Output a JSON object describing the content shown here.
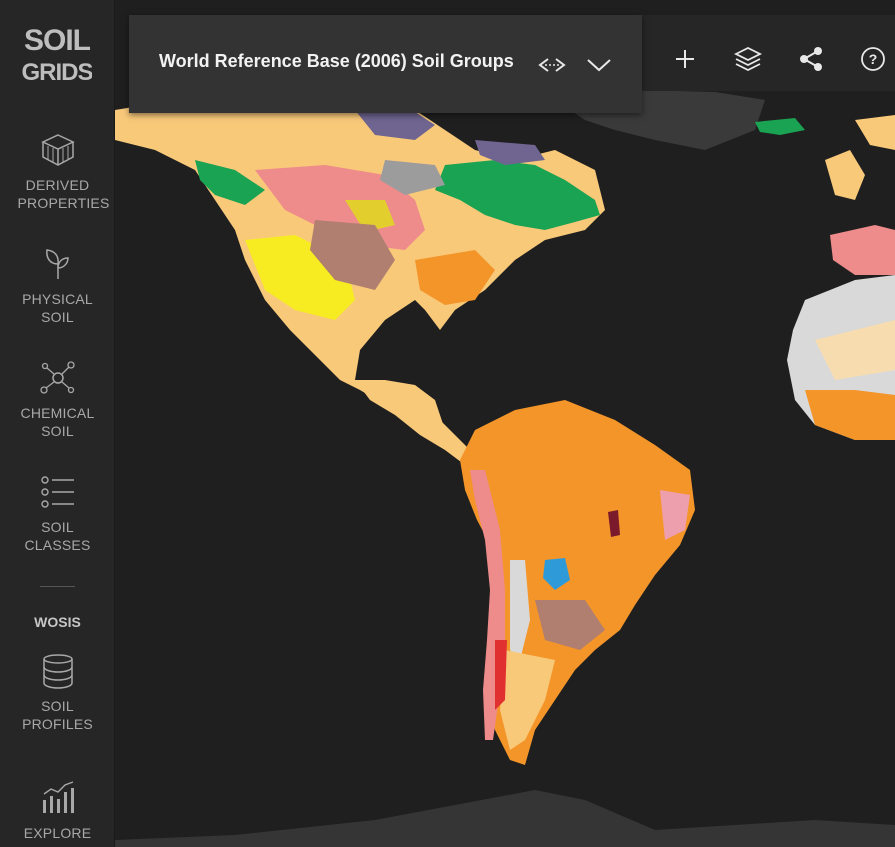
{
  "app": {
    "logo_text": "SOIL GRIDS"
  },
  "sidebar": {
    "items": [
      {
        "label": "DERIVED PROPERTIES",
        "icon": "layers-cube-icon"
      },
      {
        "label": "PHYSICAL SOIL",
        "icon": "leaf-sprout-icon"
      },
      {
        "label": "CHEMICAL SOIL",
        "icon": "molecule-icon"
      },
      {
        "label": "SOIL CLASSES",
        "icon": "list-icon"
      }
    ],
    "section_heading": "WOSIS",
    "section_items": [
      {
        "label": "SOIL PROFILES",
        "icon": "database-icon"
      },
      {
        "label": "EXPLORE",
        "icon": "chart-icon"
      }
    ]
  },
  "layer_panel": {
    "title": "World Reference Base (2006) Soil Groups",
    "compare_icon": "compare-arrows-icon",
    "expand_icon": "chevron-down-icon"
  },
  "toolbar": {
    "buttons": [
      {
        "icon": "plus-icon"
      },
      {
        "icon": "layers-icon"
      },
      {
        "icon": "share-icon"
      },
      {
        "icon": "help-icon"
      }
    ]
  },
  "colors": {
    "background": "#1f1f1f",
    "sidebar": "#262626",
    "panel": "#333333",
    "land_dark": "#3a3a3a",
    "orange": "#f4952a",
    "peach": "#f9c97a",
    "pink": "#ee8b8b",
    "green": "#1aa352",
    "yellow": "#f7ec22",
    "purple": "#6f6590",
    "brown": "#b07f6f",
    "light_gray": "#d9d9d9",
    "red": "#e03030",
    "blue": "#2f9ad8"
  }
}
